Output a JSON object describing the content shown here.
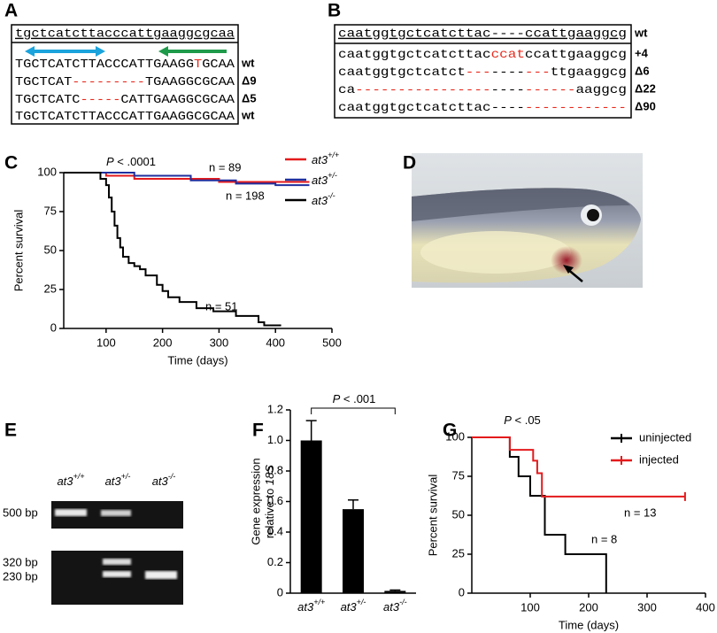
{
  "panels": {
    "A": {
      "label": "A",
      "reference": "tgctcatcttacccattgaaggcgcaa",
      "rows": [
        {
          "segments": [
            {
              "text": "TGCTCATCTTACCCATTGAAGG",
              "color": "#000000"
            },
            {
              "text": "T",
              "color": "#e8291c"
            },
            {
              "text": "GCAA",
              "color": "#000000"
            }
          ],
          "label": "wt"
        },
        {
          "segments": [
            {
              "text": "TGCTCAT",
              "color": "#000000"
            },
            {
              "text": "---------",
              "color": "#e8291c"
            },
            {
              "text": "TGAAGGCGCAA",
              "color": "#000000"
            }
          ],
          "label": "Δ9"
        },
        {
          "segments": [
            {
              "text": "TGCTCATC",
              "color": "#000000"
            },
            {
              "text": "-----",
              "color": "#e8291c"
            },
            {
              "text": "CATTGAAGGCGCAA",
              "color": "#000000"
            }
          ],
          "label": "Δ5"
        },
        {
          "segments": [
            {
              "text": "TGCTCATCTTACCCATTGAAGGCGCAA",
              "color": "#000000"
            }
          ],
          "label": "wt"
        }
      ]
    },
    "B": {
      "label": "B",
      "reference": "caatggtgctcatcttac----ccattgaaggcg",
      "reference_label": "wt",
      "rows": [
        {
          "segments": [
            {
              "text": "caatggtgctcatcttac",
              "color": "#000000"
            },
            {
              "text": "ccat",
              "color": "#e8291c"
            },
            {
              "text": "ccattgaaggcg",
              "color": "#000000"
            }
          ],
          "label": "+4"
        },
        {
          "segments": [
            {
              "text": "caatggtgctcatct",
              "color": "#000000"
            },
            {
              "text": "---",
              "color": "#e8291c"
            },
            {
              "text": "----",
              "color": "#000000"
            },
            {
              "text": "---",
              "color": "#e8291c"
            },
            {
              "text": "ttgaaggcg",
              "color": "#000000"
            }
          ],
          "label": "Δ6"
        },
        {
          "segments": [
            {
              "text": "ca",
              "color": "#000000"
            },
            {
              "text": "----------------",
              "color": "#e8291c"
            },
            {
              "text": "----",
              "color": "#000000"
            },
            {
              "text": "------",
              "color": "#e8291c"
            },
            {
              "text": "aaggcg",
              "color": "#000000"
            }
          ],
          "label": "Δ22"
        },
        {
          "segments": [
            {
              "text": "caatggtgctcatcttac",
              "color": "#000000"
            },
            {
              "text": "----",
              "color": "#000000"
            },
            {
              "text": "------------",
              "color": "#e8291c"
            }
          ],
          "label": "Δ90"
        }
      ]
    },
    "D": {
      "label": "D"
    },
    "E": {
      "label": "E",
      "lanes": [
        {
          "base": "at3",
          "sup": "+/+"
        },
        {
          "base": "at3",
          "sup": "+/-"
        },
        {
          "base": "at3",
          "sup": "-/-"
        }
      ],
      "bands": [
        "500 bp",
        "320 bp",
        "230 bp"
      ]
    }
  },
  "chart_data": [
    {
      "type": "line",
      "panel_label": "C",
      "ylabel": "Percent survival",
      "xlabel": "Time (days)",
      "xlim": [
        25,
        500
      ],
      "ylim": [
        0,
        100
      ],
      "xticks": [
        100,
        200,
        300,
        400,
        500
      ],
      "yticks": [
        0,
        25,
        50,
        75,
        100
      ],
      "p_value": {
        "symbol": "P",
        "text": " < .0001"
      },
      "annotations": [
        "n = 89",
        "n = 198",
        "n = 51"
      ],
      "series": [
        {
          "name": "at3",
          "name_sup": "+/+",
          "color": "#e41a1c",
          "x": [
            25,
            100,
            100,
            150,
            150,
            300,
            300,
            460
          ],
          "values": [
            100,
            100,
            98,
            98,
            96,
            96,
            94,
            94
          ]
        },
        {
          "name": "at3",
          "name_sup": "+/-",
          "color": "#1f2f9e",
          "x": [
            25,
            150,
            150,
            250,
            250,
            330,
            330,
            400,
            400,
            460
          ],
          "values": [
            100,
            100,
            98,
            98,
            95,
            95,
            93,
            93,
            92,
            92
          ]
        },
        {
          "name": "at3",
          "name_sup": "-/-",
          "color": "#000000",
          "x": [
            25,
            90,
            90,
            100,
            100,
            105,
            105,
            110,
            110,
            115,
            115,
            120,
            120,
            125,
            125,
            130,
            130,
            140,
            140,
            150,
            150,
            160,
            160,
            170,
            170,
            190,
            190,
            200,
            200,
            210,
            210,
            230,
            230,
            260,
            260,
            290,
            290,
            330,
            330,
            370,
            370,
            380,
            380,
            410
          ],
          "values": [
            100,
            100,
            96,
            96,
            92,
            92,
            84,
            84,
            75,
            75,
            66,
            66,
            58,
            58,
            52,
            52,
            46,
            46,
            42,
            42,
            40,
            40,
            38,
            38,
            34,
            34,
            28,
            28,
            24,
            24,
            20,
            20,
            17,
            17,
            13,
            13,
            11,
            11,
            8,
            8,
            4,
            4,
            2,
            2
          ]
        }
      ]
    },
    {
      "type": "bar",
      "panel_label": "F",
      "ylabel": [
        "Gene expression",
        "relative to ",
        "18S"
      ],
      "ylim": [
        0,
        1.2
      ],
      "yticks": [
        0,
        0.2,
        0.4,
        0.6,
        0.8,
        {
          "value": 1,
          "label": "1.0"
        },
        1.2
      ],
      "p_value": {
        "symbol": "P",
        "text": " < .001"
      },
      "categories": [
        {
          "base": "at3",
          "sup": "+/+"
        },
        {
          "base": "at3",
          "sup": "+/-"
        },
        {
          "base": "at3",
          "sup": "-/-"
        }
      ],
      "values": [
        1.0,
        0.55,
        0.015
      ],
      "errors": [
        0.13,
        0.06,
        0.005
      ],
      "color": "#000000"
    },
    {
      "type": "line",
      "panel_label": "G",
      "ylabel": "Percent survival",
      "xlabel": "Time (days)",
      "xlim": [
        0,
        400
      ],
      "ylim": [
        0,
        100
      ],
      "xticks": [
        100,
        200,
        300,
        400
      ],
      "yticks": [
        0,
        25,
        50,
        75,
        100
      ],
      "p_value": {
        "symbol": "P",
        "text": " < .05"
      },
      "annotations": [
        "n = 13",
        "n = 8"
      ],
      "series": [
        {
          "name": "uninjected",
          "color": "#000000",
          "x": [
            0,
            65,
            65,
            80,
            80,
            100,
            100,
            125,
            125,
            160,
            160,
            230,
            230
          ],
          "values": [
            100,
            100,
            87.5,
            87.5,
            75,
            75,
            62.5,
            62.5,
            37.5,
            37.5,
            25,
            25,
            0
          ]
        },
        {
          "name": "injected",
          "color": "#e41a1c",
          "x": [
            0,
            65,
            65,
            105,
            105,
            112,
            112,
            120,
            120,
            365
          ],
          "values": [
            100,
            100,
            92,
            92,
            85,
            85,
            77,
            77,
            62,
            62
          ]
        }
      ]
    }
  ]
}
